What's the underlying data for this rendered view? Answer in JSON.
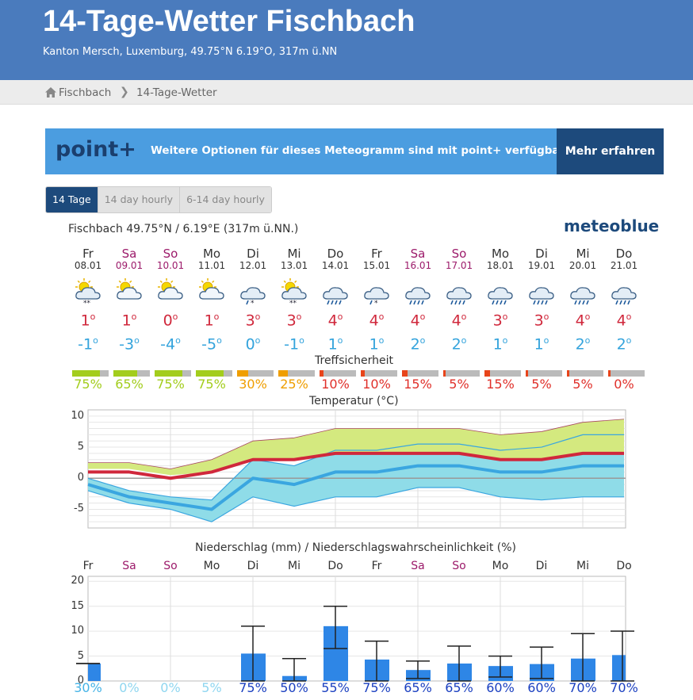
{
  "header": {
    "title": "14-Tage-Wetter Fischbach",
    "subtitle": "Kanton Mersch, Luxemburg, 49.75°N 6.19°O, 317m ü.NN"
  },
  "breadcrumb": {
    "home": "Fischbach",
    "separator": "❯",
    "current": "14-Tage-Wetter"
  },
  "banner": {
    "logo": "point+",
    "text": "Weitere Optionen für dieses Meteogramm sind mit point+ verfügbar",
    "button": "Mehr erfahren"
  },
  "tabs": [
    {
      "label": "14 Tage",
      "active": true
    },
    {
      "label": "14 day hourly",
      "active": false
    },
    {
      "label": "6-14 day hourly",
      "active": false
    }
  ],
  "location_line": "Fischbach  49.75°N / 6.19°E (317m ü.NN.)",
  "brand": "meteoblue",
  "colors": {
    "header": "#4a7bbd",
    "banner": "#4b9de0",
    "banner_button": "#1d4a7c",
    "temp_max": "#d0283c",
    "temp_min": "#33a3dc",
    "weekend": "#9c1a6a",
    "precip_bar": "#2e86e6"
  },
  "days": [
    {
      "name": "Fr",
      "date": "08.01",
      "weekend": false,
      "icon": "sun-cloud-snow-icon",
      "tmax": "1",
      "tmin": "-1",
      "confidence": "75%",
      "conf_pct": 75
    },
    {
      "name": "Sa",
      "date": "09.01",
      "weekend": true,
      "icon": "sun-cloud-icon",
      "tmax": "1",
      "tmin": "-3",
      "confidence": "65%",
      "conf_pct": 65
    },
    {
      "name": "So",
      "date": "10.01",
      "weekend": true,
      "icon": "sun-cloud-icon",
      "tmax": "0",
      "tmin": "-4",
      "confidence": "75%",
      "conf_pct": 75
    },
    {
      "name": "Mo",
      "date": "11.01",
      "weekend": false,
      "icon": "sun-cloud-icon",
      "tmax": "1",
      "tmin": "-5",
      "confidence": "75%",
      "conf_pct": 75
    },
    {
      "name": "Di",
      "date": "12.01",
      "weekend": false,
      "icon": "cloud-sleet-icon",
      "tmax": "3",
      "tmin": "0",
      "confidence": "30%",
      "conf_pct": 30
    },
    {
      "name": "Mi",
      "date": "13.01",
      "weekend": false,
      "icon": "sun-cloud-snow-icon",
      "tmax": "3",
      "tmin": "-1",
      "confidence": "25%",
      "conf_pct": 25
    },
    {
      "name": "Do",
      "date": "14.01",
      "weekend": false,
      "icon": "cloud-rain-icon",
      "tmax": "4",
      "tmin": "1",
      "confidence": "10%",
      "conf_pct": 10
    },
    {
      "name": "Fr",
      "date": "15.01",
      "weekend": false,
      "icon": "cloud-sleet-icon",
      "tmax": "4",
      "tmin": "1",
      "confidence": "10%",
      "conf_pct": 10
    },
    {
      "name": "Sa",
      "date": "16.01",
      "weekend": true,
      "icon": "cloud-rain-icon",
      "tmax": "4",
      "tmin": "2",
      "confidence": "15%",
      "conf_pct": 15
    },
    {
      "name": "So",
      "date": "17.01",
      "weekend": true,
      "icon": "cloud-rain-icon",
      "tmax": "4",
      "tmin": "2",
      "confidence": "5%",
      "conf_pct": 5
    },
    {
      "name": "Mo",
      "date": "18.01",
      "weekend": false,
      "icon": "cloud-rain-icon",
      "tmax": "3",
      "tmin": "1",
      "confidence": "15%",
      "conf_pct": 15
    },
    {
      "name": "Di",
      "date": "19.01",
      "weekend": false,
      "icon": "cloud-rain-icon",
      "tmax": "3",
      "tmin": "1",
      "confidence": "5%",
      "conf_pct": 5
    },
    {
      "name": "Mi",
      "date": "20.01",
      "weekend": false,
      "icon": "cloud-rain-icon",
      "tmax": "4",
      "tmin": "2",
      "confidence": "5%",
      "conf_pct": 5
    },
    {
      "name": "Do",
      "date": "21.01",
      "weekend": false,
      "icon": "cloud-rain-icon",
      "tmax": "4",
      "tmin": "2",
      "confidence": "0%",
      "conf_pct": 0
    }
  ],
  "confidence_title": "Treffsicherheit",
  "chart_data": [
    {
      "type": "area",
      "title": "Temperatur (°C)",
      "ylim": [
        -8,
        11
      ],
      "yticks": [
        "10",
        "5",
        "0",
        "-5"
      ],
      "categories": [
        "Fr",
        "Sa",
        "So",
        "Mo",
        "Di",
        "Mi",
        "Do",
        "Fr",
        "Sa",
        "So",
        "Mo",
        "Di",
        "Mi",
        "Do"
      ],
      "series": [
        {
          "values": [
            1,
            1,
            0,
            1,
            3,
            3,
            4,
            4,
            4,
            4,
            3,
            3,
            4,
            4
          ]
        },
        {
          "values": [
            -1,
            -3,
            -4,
            -5,
            0,
            -1,
            1,
            1,
            2,
            2,
            1,
            1,
            2,
            2
          ]
        }
      ],
      "band_max_upper": [
        2.5,
        2.5,
        1.5,
        3,
        6,
        6.5,
        8,
        8,
        8,
        8,
        7,
        7.5,
        9,
        9.5
      ],
      "band_max_lower": [
        1.5,
        1.5,
        0.5,
        1,
        3,
        3,
        4,
        4,
        4,
        4,
        3,
        3,
        4,
        4
      ],
      "band_min_upper": [
        0,
        -2,
        -3,
        -3.5,
        3,
        2,
        4.5,
        4.5,
        5.5,
        5.5,
        4.5,
        5,
        7,
        7
      ],
      "band_min_lower": [
        -2,
        -4,
        -5,
        -7,
        -3,
        -4.5,
        -3,
        -3,
        -1.5,
        -1.5,
        -3,
        -3.5,
        -3,
        -3
      ],
      "grid": true
    },
    {
      "type": "bar",
      "title": "Niederschlag (mm) / Niederschlagswahrscheinlichkeit (%)",
      "ylim": [
        0,
        21
      ],
      "yticks": [
        "20",
        "15",
        "10",
        "5",
        "0"
      ],
      "categories": [
        "Fr",
        "Sa",
        "So",
        "Mo",
        "Di",
        "Mi",
        "Do",
        "Fr",
        "Sa",
        "So",
        "Mo",
        "Di",
        "Mi",
        "Do"
      ],
      "values": [
        3.5,
        0,
        0,
        0,
        5.5,
        1,
        11,
        4.3,
        2.2,
        3.5,
        3,
        3.4,
        4.5,
        5.2
      ],
      "err_low": [
        3.5,
        0,
        0,
        0,
        0,
        0,
        6.5,
        0,
        0.5,
        0,
        0.8,
        0.5,
        0,
        0
      ],
      "err_high": [
        3.5,
        0,
        0,
        0,
        11,
        4.5,
        15,
        8,
        4,
        7,
        5,
        6.8,
        9.5,
        10
      ],
      "probability": [
        "30%",
        "0%",
        "0%",
        "5%",
        "75%",
        "50%",
        "55%",
        "75%",
        "65%",
        "65%",
        "60%",
        "60%",
        "70%",
        "70%"
      ],
      "grid": true
    }
  ]
}
